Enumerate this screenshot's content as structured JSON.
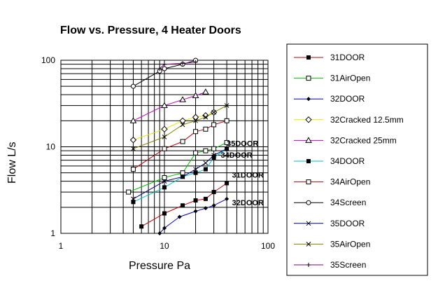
{
  "chart_data": {
    "type": "line",
    "title": "Flow vs. Pressure, 4 Heater Doors",
    "xlabel": "Pressure Pa",
    "ylabel": "Flow L/s",
    "xscale": "log",
    "yscale": "log",
    "xlim": [
      1,
      100
    ],
    "ylim": [
      1,
      100
    ],
    "xticks": [
      1,
      10,
      100
    ],
    "xtick_labels": [
      "1",
      "10",
      "100"
    ],
    "yticks": [
      1,
      10,
      100
    ],
    "ytick_labels": [
      "1",
      "10",
      "100"
    ],
    "grid": true,
    "legend_position": "right",
    "series": [
      {
        "name": "31DOOR",
        "color": "#c00000",
        "marker": "filled-square",
        "x": [
          6,
          10,
          15,
          20,
          25,
          30,
          40
        ],
        "y": [
          1.2,
          1.7,
          2.1,
          2.4,
          2.5,
          3.0,
          3.8
        ]
      },
      {
        "name": "31AirOpen",
        "color": "#00c000",
        "marker": "open-square",
        "x": [
          4.5,
          10,
          15,
          20,
          25,
          30,
          40
        ],
        "y": [
          3.0,
          4.4,
          5.0,
          8.5,
          9.0,
          9.5,
          11.2
        ]
      },
      {
        "name": "32DOOR",
        "color": "#0000c0",
        "marker": "filled-diamond",
        "x": [
          9,
          10,
          14,
          20,
          25,
          30,
          40
        ],
        "y": [
          1.0,
          1.15,
          1.55,
          1.8,
          1.95,
          2.1,
          2.5
        ]
      },
      {
        "name": "32Cracked 12.5mm",
        "color": "#e6e600",
        "marker": "open-diamond",
        "x": [
          5,
          10,
          15,
          20,
          25,
          30
        ],
        "y": [
          12,
          16,
          20,
          22,
          23,
          25
        ]
      },
      {
        "name": "32Cracked 25mm",
        "color": "#c000c0",
        "marker": "open-triangle",
        "x": [
          5,
          10,
          15,
          20,
          25
        ],
        "y": [
          20,
          30,
          35,
          39,
          43
        ]
      },
      {
        "name": "34DOOR",
        "color": "#00c0c0",
        "marker": "filled-square",
        "x": [
          5,
          10,
          15,
          20,
          25,
          30,
          40
        ],
        "y": [
          2.3,
          3.4,
          4.5,
          5.0,
          5.5,
          7.5,
          9.5
        ]
      },
      {
        "name": "34AirOpen",
        "color": "#c00000",
        "marker": "open-square",
        "x": [
          5,
          10,
          15,
          20,
          25,
          30,
          40
        ],
        "y": [
          5.5,
          9.5,
          11.5,
          15,
          16,
          18,
          20
        ]
      },
      {
        "name": "34Screen",
        "color": "#000000",
        "marker": "open-circle",
        "x": [
          5,
          9,
          10,
          15,
          20
        ],
        "y": [
          50,
          75,
          80,
          90,
          100
        ]
      },
      {
        "name": "35DOOR",
        "color": "#000080",
        "marker": "x",
        "x": [
          5,
          10,
          15,
          20,
          25,
          30,
          40
        ],
        "y": [
          2.5,
          4.0,
          4.5,
          5.5,
          6.5,
          8.0,
          9.5
        ]
      },
      {
        "name": "35AirOpen",
        "color": "#808000",
        "marker": "x",
        "x": [
          5,
          10,
          15,
          20,
          25,
          30,
          40
        ],
        "y": [
          9.5,
          13,
          18,
          20,
          22,
          25,
          30
        ]
      },
      {
        "name": "35Screen",
        "color": "#800080",
        "marker": "plus",
        "x": [
          9,
          10,
          15,
          20
        ],
        "y": [
          80,
          90,
          92,
          95
        ]
      }
    ],
    "annotations": [
      {
        "text": "35DOOR",
        "x": 40,
        "y": 10.2
      },
      {
        "text": "34DOOR",
        "x": 35,
        "y": 7.5
      },
      {
        "text": "31DOOR",
        "x": 45,
        "y": 4.4
      },
      {
        "text": "32DOOR",
        "x": 45,
        "y": 2.1
      }
    ]
  }
}
